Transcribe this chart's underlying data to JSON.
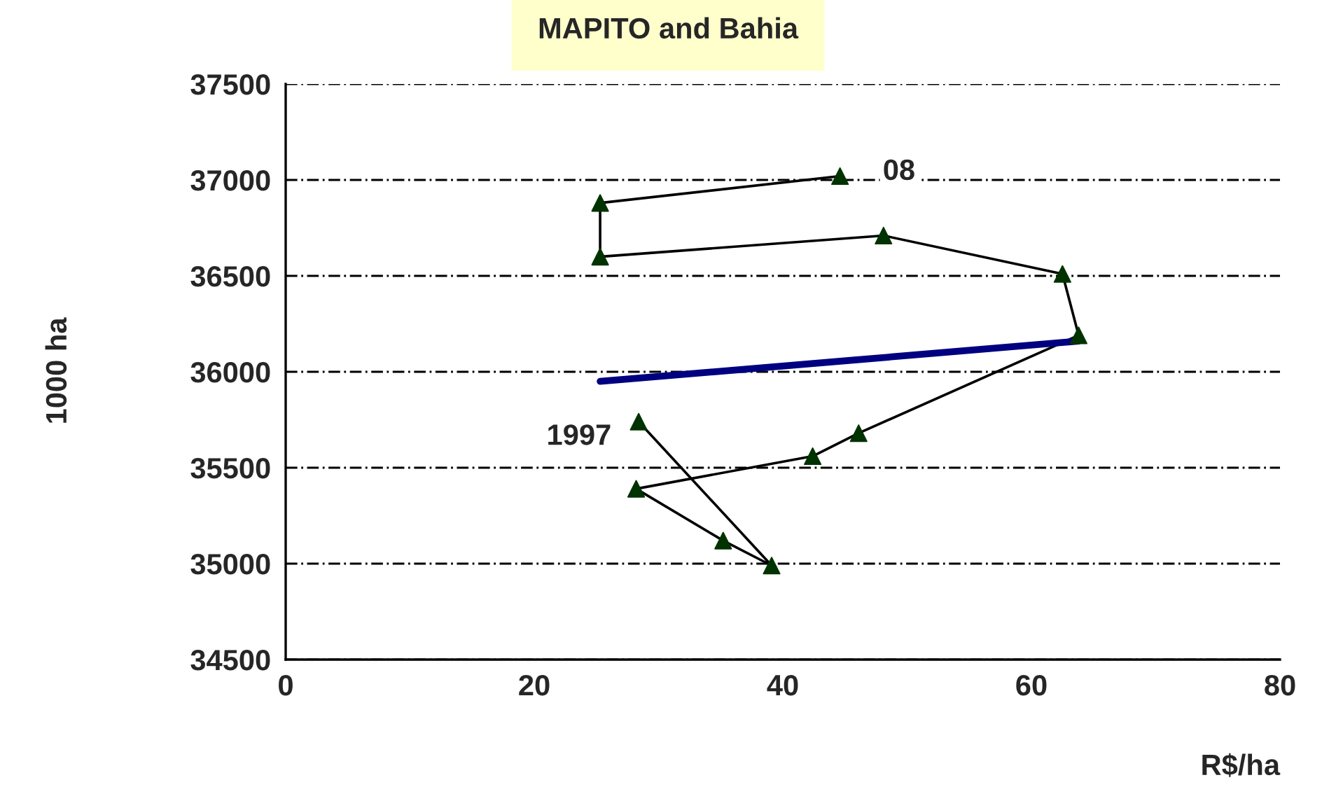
{
  "chart_data": {
    "type": "line",
    "title": "MAPITO and Bahia",
    "xlabel": "R$/ha",
    "ylabel": "1000 ha",
    "series": [
      {
        "color": "#000000",
        "marker": "none",
        "x": [
          28.4,
          39.1,
          35.2,
          28.2,
          42.4,
          46.1,
          63.8,
          62.5,
          48.1,
          25.3,
          25.3,
          44.6
        ],
        "values": [
          35740,
          34990,
          35120,
          35390,
          35560,
          35680,
          36190,
          36510,
          36710,
          36600,
          36880,
          37020
        ]
      },
      {
        "type": "scatter",
        "color": "#003300",
        "marker": "triangle",
        "x": [
          28.4,
          39.1,
          35.2,
          28.2,
          42.4,
          46.1,
          63.8,
          62.5,
          48.1,
          25.3,
          25.3,
          44.6
        ],
        "values": [
          35740,
          34990,
          35120,
          35390,
          35560,
          35680,
          36190,
          36510,
          36710,
          36600,
          36880,
          37020
        ]
      },
      {
        "color": "#000080",
        "marker": "none",
        "x": [
          25.3,
          63.8
        ],
        "values": [
          35950,
          36160
        ]
      }
    ],
    "annotations": [
      {
        "text": "1997",
        "x": 28.4,
        "y": 35740
      },
      {
        "text": "08",
        "x": 44.6,
        "y": 37020
      }
    ],
    "xlim": [
      0,
      80
    ],
    "xticks": [
      0,
      20,
      40,
      60,
      80
    ],
    "ylim": [
      34500,
      37500
    ],
    "yticks": [
      34500,
      35000,
      35500,
      36000,
      36500,
      37000,
      37500
    ],
    "grid": "y",
    "legend": false
  }
}
